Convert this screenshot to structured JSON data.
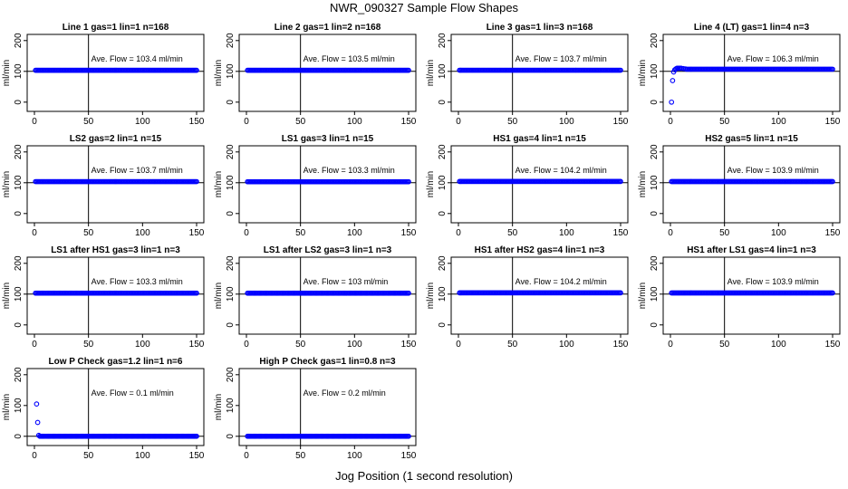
{
  "title": "NWR_090327  Sample Flow Shapes",
  "xlabel": "Jog Position (1 second resolution)",
  "chart_data": [
    {
      "type": "scatter",
      "title": "Line 1 gas=1 lin=1 n=168",
      "ylabel": "ml/min",
      "annotation": "Ave. Flow =  103.4  ml/min",
      "xlim": [
        0,
        150
      ],
      "ylim": [
        -30,
        220
      ],
      "xticks": [
        0,
        50,
        100,
        150
      ],
      "yticks": [
        0,
        100,
        200
      ],
      "vline": 50,
      "hline": 100,
      "series": [
        {
          "x": [
            1,
            150
          ],
          "y": [
            103.4,
            103.4
          ]
        }
      ]
    },
    {
      "type": "scatter",
      "title": "Line 2 gas=1 lin=2 n=168",
      "ylabel": "ml/min",
      "annotation": "Ave. Flow =  103.5  ml/min",
      "xlim": [
        0,
        150
      ],
      "ylim": [
        -30,
        220
      ],
      "xticks": [
        0,
        50,
        100,
        150
      ],
      "yticks": [
        0,
        100,
        200
      ],
      "vline": 50,
      "hline": 100,
      "series": [
        {
          "x": [
            1,
            150
          ],
          "y": [
            103.5,
            103.5
          ]
        }
      ]
    },
    {
      "type": "scatter",
      "title": "Line 3 gas=1 lin=3 n=168",
      "ylabel": "ml/min",
      "annotation": "Ave. Flow =  103.7  ml/min",
      "xlim": [
        0,
        150
      ],
      "ylim": [
        -30,
        220
      ],
      "xticks": [
        0,
        50,
        100,
        150
      ],
      "yticks": [
        0,
        100,
        200
      ],
      "vline": 50,
      "hline": 100,
      "series": [
        {
          "x": [
            1,
            150
          ],
          "y": [
            103.7,
            103.7
          ]
        }
      ]
    },
    {
      "type": "scatter",
      "title": "Line 4 (LT) gas=1 lin=4 n=3",
      "ylabel": "ml/min",
      "annotation": "Ave. Flow =  106.3  ml/min",
      "xlim": [
        0,
        150
      ],
      "ylim": [
        -30,
        220
      ],
      "xticks": [
        0,
        50,
        100,
        150
      ],
      "yticks": [
        0,
        100,
        200
      ],
      "vline": 50,
      "hline": 100,
      "series": [
        {
          "x": [
            1,
            2,
            3,
            4,
            5,
            6,
            7,
            8,
            9,
            10,
            12,
            14,
            150
          ],
          "y": [
            0,
            70,
            98,
            105,
            108,
            110,
            110,
            110,
            110,
            110,
            109,
            108,
            107
          ]
        }
      ]
    },
    {
      "type": "scatter",
      "title": "LS2 gas=2 lin=1 n=15",
      "ylabel": "ml/min",
      "annotation": "Ave. Flow =  103.7  ml/min",
      "xlim": [
        0,
        150
      ],
      "ylim": [
        -30,
        220
      ],
      "xticks": [
        0,
        50,
        100,
        150
      ],
      "yticks": [
        0,
        100,
        200
      ],
      "vline": 50,
      "hline": 100,
      "series": [
        {
          "x": [
            1,
            150
          ],
          "y": [
            103.7,
            103.7
          ]
        }
      ]
    },
    {
      "type": "scatter",
      "title": "LS1 gas=3 lin=1 n=15",
      "ylabel": "ml/min",
      "annotation": "Ave. Flow =  103.3  ml/min",
      "xlim": [
        0,
        150
      ],
      "ylim": [
        -30,
        220
      ],
      "xticks": [
        0,
        50,
        100,
        150
      ],
      "yticks": [
        0,
        100,
        200
      ],
      "vline": 50,
      "hline": 100,
      "series": [
        {
          "x": [
            1,
            150
          ],
          "y": [
            103.3,
            103.3
          ]
        }
      ]
    },
    {
      "type": "scatter",
      "title": "HS1 gas=4 lin=1 n=15",
      "ylabel": "ml/min",
      "annotation": "Ave. Flow =  104.2  ml/min",
      "xlim": [
        0,
        150
      ],
      "ylim": [
        -30,
        220
      ],
      "xticks": [
        0,
        50,
        100,
        150
      ],
      "yticks": [
        0,
        100,
        200
      ],
      "vline": 50,
      "hline": 100,
      "series": [
        {
          "x": [
            1,
            150
          ],
          "y": [
            104.2,
            104.2
          ]
        }
      ]
    },
    {
      "type": "scatter",
      "title": "HS2 gas=5 lin=1 n=15",
      "ylabel": "ml/min",
      "annotation": "Ave. Flow =  103.9  ml/min",
      "xlim": [
        0,
        150
      ],
      "ylim": [
        -30,
        220
      ],
      "xticks": [
        0,
        50,
        100,
        150
      ],
      "yticks": [
        0,
        100,
        200
      ],
      "vline": 50,
      "hline": 100,
      "series": [
        {
          "x": [
            1,
            150
          ],
          "y": [
            103.9,
            103.9
          ]
        }
      ]
    },
    {
      "type": "scatter",
      "title": "LS1 after HS1 gas=3 lin=1 n=3",
      "ylabel": "ml/min",
      "annotation": "Ave. Flow =  103.3  ml/min",
      "xlim": [
        0,
        150
      ],
      "ylim": [
        -30,
        220
      ],
      "xticks": [
        0,
        50,
        100,
        150
      ],
      "yticks": [
        0,
        100,
        200
      ],
      "vline": 50,
      "hline": 100,
      "series": [
        {
          "x": [
            1,
            150
          ],
          "y": [
            103.3,
            103.3
          ]
        }
      ]
    },
    {
      "type": "scatter",
      "title": "LS1 after LS2 gas=3 lin=1 n=3",
      "ylabel": "ml/min",
      "annotation": "Ave. Flow =  103  ml/min",
      "xlim": [
        0,
        150
      ],
      "ylim": [
        -30,
        220
      ],
      "xticks": [
        0,
        50,
        100,
        150
      ],
      "yticks": [
        0,
        100,
        200
      ],
      "vline": 50,
      "hline": 100,
      "series": [
        {
          "x": [
            1,
            150
          ],
          "y": [
            103,
            103
          ]
        }
      ]
    },
    {
      "type": "scatter",
      "title": "HS1 after HS2 gas=4 lin=1 n=3",
      "ylabel": "ml/min",
      "annotation": "Ave. Flow =  104.2  ml/min",
      "xlim": [
        0,
        150
      ],
      "ylim": [
        -30,
        220
      ],
      "xticks": [
        0,
        50,
        100,
        150
      ],
      "yticks": [
        0,
        100,
        200
      ],
      "vline": 50,
      "hline": 100,
      "series": [
        {
          "x": [
            1,
            150
          ],
          "y": [
            104.2,
            104.2
          ]
        }
      ]
    },
    {
      "type": "scatter",
      "title": "HS1 after LS1 gas=4 lin=1 n=3",
      "ylabel": "ml/min",
      "annotation": "Ave. Flow =  103.9  ml/min",
      "xlim": [
        0,
        150
      ],
      "ylim": [
        -30,
        220
      ],
      "xticks": [
        0,
        50,
        100,
        150
      ],
      "yticks": [
        0,
        100,
        200
      ],
      "vline": 50,
      "hline": 100,
      "series": [
        {
          "x": [
            1,
            150
          ],
          "y": [
            103.9,
            103.9
          ]
        }
      ]
    },
    {
      "type": "scatter",
      "title": "Low P Check gas=1.2 lin=1 n=6",
      "ylabel": "ml/min",
      "annotation": "Ave. Flow =  0.1  ml/min",
      "xlim": [
        0,
        150
      ],
      "ylim": [
        -30,
        220
      ],
      "xticks": [
        0,
        50,
        100,
        150
      ],
      "yticks": [
        0,
        100,
        200
      ],
      "vline": 50,
      "hline": 0,
      "series": [
        {
          "x": [
            2,
            3,
            4,
            150
          ],
          "y": [
            105,
            45,
            3,
            0.1
          ]
        }
      ]
    },
    {
      "type": "scatter",
      "title": "High P Check gas=1 lin=0.8 n=3",
      "ylabel": "ml/min",
      "annotation": "Ave. Flow =  0.2  ml/min",
      "xlim": [
        0,
        150
      ],
      "ylim": [
        -30,
        220
      ],
      "xticks": [
        0,
        50,
        100,
        150
      ],
      "yticks": [
        0,
        100,
        200
      ],
      "vline": 50,
      "hline": 0,
      "series": [
        {
          "x": [
            1,
            150
          ],
          "y": [
            0.2,
            0.2
          ]
        }
      ]
    }
  ],
  "colors": {
    "points": "#0000ff",
    "lines": "#000000"
  }
}
